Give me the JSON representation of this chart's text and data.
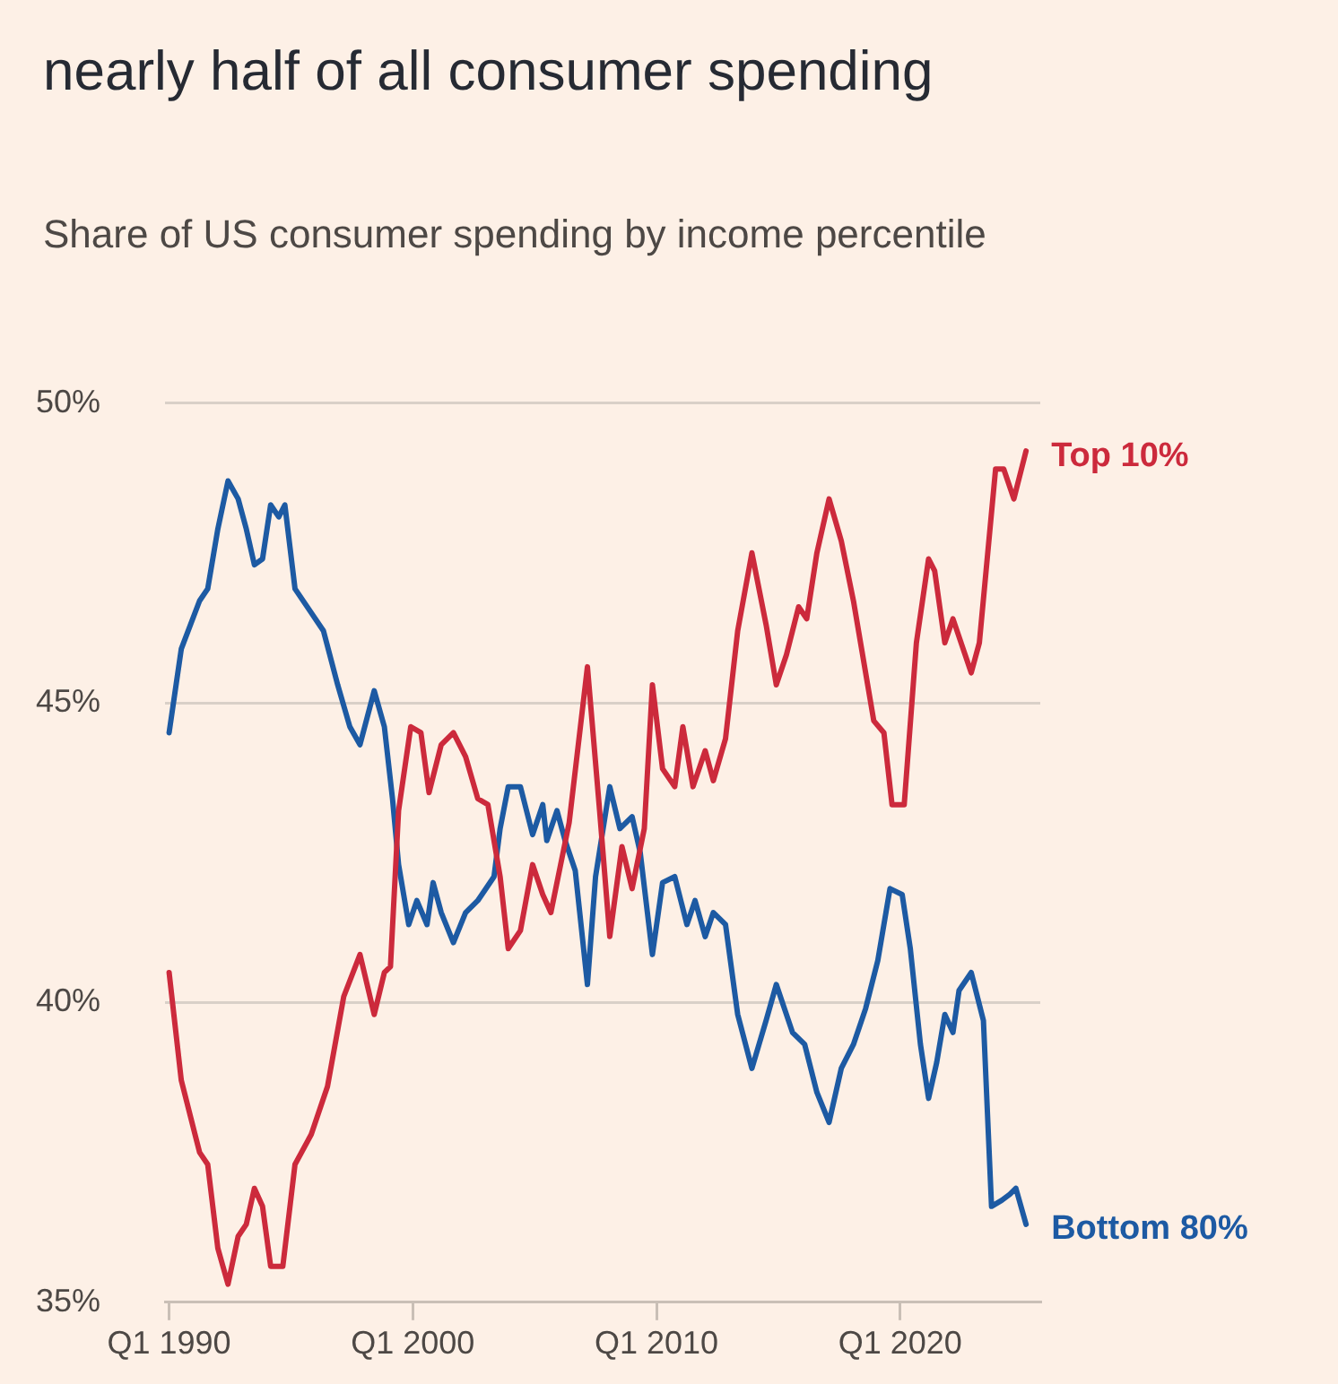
{
  "chart_data": {
    "type": "line",
    "title": "nearly half of all consumer spending",
    "subtitle": "Share of US consumer spending by income percentile",
    "xlim": [
      "1989-11",
      "2025-10"
    ],
    "xticks": [
      {
        "value": "1990-01",
        "label": "Q1 1990"
      },
      {
        "value": "2000-01",
        "label": "Q1 2000"
      },
      {
        "value": "2010-01",
        "label": "Q1 2010"
      },
      {
        "value": "2020-01",
        "label": "Q1 2020"
      }
    ],
    "ylim": [
      35,
      50
    ],
    "yticks": [
      {
        "value": 35,
        "label": "35%"
      },
      {
        "value": 40,
        "label": "40%"
      },
      {
        "value": 45,
        "label": "45%"
      },
      {
        "value": 50,
        "label": "50%"
      }
    ],
    "grid": "y",
    "line_style": "solid",
    "series": [
      {
        "name": "Top 10%",
        "color": "#cc2a3c",
        "x": [
          "1990-01",
          "1990-07",
          "1991-04",
          "1991-08",
          "1992-01",
          "1992-06",
          "1992-11",
          "1993-03",
          "1993-07",
          "1993-11",
          "1994-03",
          "1994-09",
          "1995-03",
          "1995-11",
          "1996-07",
          "1997-03",
          "1997-11",
          "1998-06",
          "1998-11",
          "1999-02",
          "1999-06",
          "1999-12",
          "2000-05",
          "2000-09",
          "2001-03",
          "2001-09",
          "2002-03",
          "2002-09",
          "2003-02",
          "2003-08",
          "2003-12",
          "2004-06",
          "2004-12",
          "2005-05",
          "2005-09",
          "2006-06",
          "2007-03",
          "2007-09",
          "2008-02",
          "2008-08",
          "2009-01",
          "2009-07",
          "2009-11",
          "2010-04",
          "2010-10",
          "2011-02",
          "2011-07",
          "2012-01",
          "2012-05",
          "2012-11",
          "2013-05",
          "2013-12",
          "2014-07",
          "2014-12",
          "2015-05",
          "2015-11",
          "2016-03",
          "2016-08",
          "2017-02",
          "2017-08",
          "2018-02",
          "2018-06",
          "2018-12",
          "2019-05",
          "2019-09",
          "2020-03",
          "2020-09",
          "2021-03",
          "2021-06",
          "2021-11",
          "2022-03",
          "2022-12",
          "2023-04",
          "2023-12",
          "2024-04",
          "2024-09",
          "2025-03"
        ],
        "values": [
          40.5,
          38.7,
          37.5,
          37.3,
          35.9,
          35.3,
          36.1,
          36.3,
          36.9,
          36.6,
          35.6,
          35.6,
          37.3,
          37.8,
          38.6,
          40.1,
          40.8,
          39.8,
          40.5,
          40.6,
          43.2,
          44.6,
          44.5,
          43.5,
          44.3,
          44.5,
          44.1,
          43.4,
          43.3,
          42.1,
          40.9,
          41.2,
          42.3,
          41.8,
          41.5,
          43.0,
          45.6,
          43.2,
          41.1,
          42.6,
          41.9,
          42.9,
          45.3,
          43.9,
          43.6,
          44.6,
          43.6,
          44.2,
          43.7,
          44.4,
          46.2,
          47.5,
          46.3,
          45.3,
          45.8,
          46.6,
          46.4,
          47.5,
          48.4,
          47.7,
          46.7,
          45.9,
          44.7,
          44.5,
          43.3,
          43.3,
          46.0,
          47.4,
          47.2,
          46.0,
          46.4,
          45.5,
          46.0,
          48.9,
          48.9,
          48.4,
          49.2
        ]
      },
      {
        "name": "Bottom 80%",
        "color": "#1d5aa3",
        "x": [
          "1990-01",
          "1990-07",
          "1991-04",
          "1991-08",
          "1992-01",
          "1992-06",
          "1992-11",
          "1993-03",
          "1993-07",
          "1993-11",
          "1994-03",
          "1994-07",
          "1994-10",
          "1995-03",
          "1995-11",
          "1996-05",
          "1996-12",
          "1997-06",
          "1997-11",
          "1998-06",
          "1998-11",
          "1999-03",
          "1999-06",
          "1999-11",
          "2000-03",
          "2000-08",
          "2000-11",
          "2001-03",
          "2001-09",
          "2002-03",
          "2002-09",
          "2003-05",
          "2003-08",
          "2003-12",
          "2004-06",
          "2004-12",
          "2005-05",
          "2005-07",
          "2005-12",
          "2006-04",
          "2006-09",
          "2007-03",
          "2007-07",
          "2008-02",
          "2008-07",
          "2009-01",
          "2009-05",
          "2009-11",
          "2010-04",
          "2010-10",
          "2011-04",
          "2011-08",
          "2012-01",
          "2012-05",
          "2012-11",
          "2013-05",
          "2013-12",
          "2014-07",
          "2014-12",
          "2015-08",
          "2016-02",
          "2016-08",
          "2017-02",
          "2017-08",
          "2018-02",
          "2018-08",
          "2019-02",
          "2019-08",
          "2020-02",
          "2020-06",
          "2020-11",
          "2021-03",
          "2021-07",
          "2021-11",
          "2022-03",
          "2022-06",
          "2022-12",
          "2023-06",
          "2023-10",
          "2024-03",
          "2024-07",
          "2024-10",
          "2025-03"
        ],
        "values": [
          44.5,
          45.9,
          46.7,
          46.9,
          47.9,
          48.7,
          48.4,
          47.9,
          47.3,
          47.4,
          48.3,
          48.1,
          48.3,
          46.9,
          46.5,
          46.2,
          45.3,
          44.6,
          44.3,
          45.2,
          44.6,
          43.4,
          42.3,
          41.3,
          41.7,
          41.3,
          42.0,
          41.5,
          41.0,
          41.5,
          41.7,
          42.1,
          42.9,
          43.6,
          43.6,
          42.8,
          43.3,
          42.7,
          43.2,
          42.7,
          42.2,
          40.3,
          42.1,
          43.6,
          42.9,
          43.1,
          42.5,
          40.8,
          42.0,
          42.1,
          41.3,
          41.7,
          41.1,
          41.5,
          41.3,
          39.8,
          38.9,
          39.7,
          40.3,
          39.5,
          39.3,
          38.5,
          38.0,
          38.9,
          39.3,
          39.9,
          40.7,
          41.9,
          41.8,
          40.9,
          39.3,
          38.4,
          39.0,
          39.8,
          39.5,
          40.2,
          40.5,
          39.7,
          36.6,
          36.7,
          36.8,
          36.9,
          36.3
        ]
      }
    ]
  }
}
